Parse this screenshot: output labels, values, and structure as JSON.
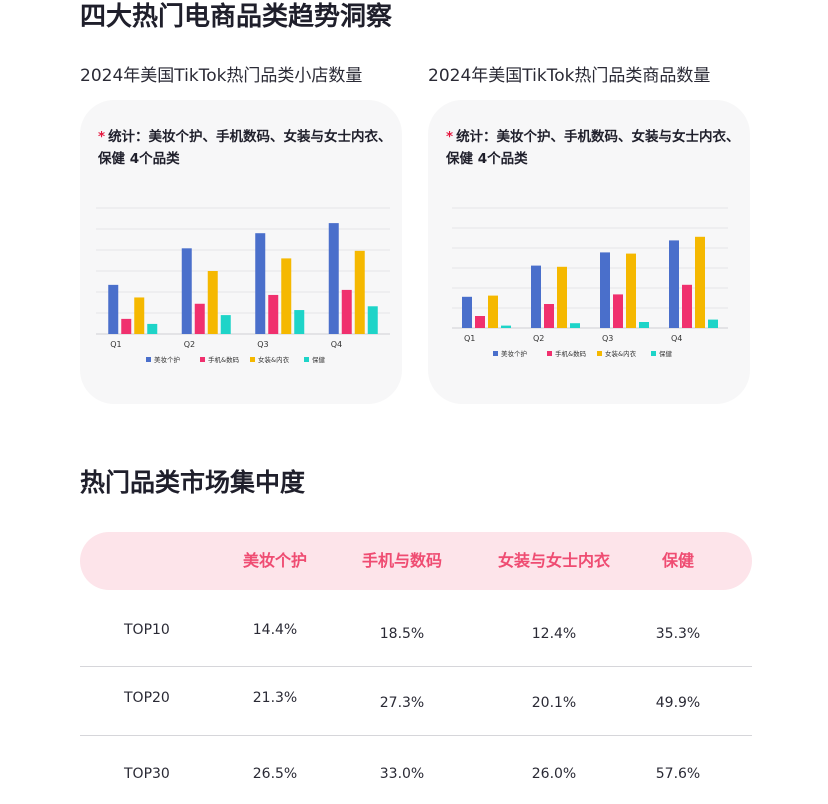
{
  "page": {
    "title": "四大热门电商品类趋势洞察",
    "section_title": "热门品类市场集中度"
  },
  "chart_data": [
    {
      "type": "bar",
      "title": "2024年美国TikTok热门品类小店数量",
      "note": "统计：美妆个护、手机数码、女装与女士内衣、保健 4个品类",
      "note_marker": "*",
      "categories": [
        "Q1",
        "Q2",
        "Q3",
        "Q4"
      ],
      "series": [
        {
          "name": "美妆个护",
          "values": [
            39,
            68,
            80,
            88
          ]
        },
        {
          "name": "手机&数码",
          "values": [
            12,
            24,
            31,
            35
          ]
        },
        {
          "name": "女装&内衣",
          "values": [
            29,
            50,
            60,
            66
          ]
        },
        {
          "name": "保健",
          "values": [
            8,
            15,
            19,
            22
          ]
        }
      ],
      "ylim": [
        0,
        100
      ],
      "grid": true,
      "legend_position": "bottom",
      "colors": [
        "#4a6fcb",
        "#f0306e",
        "#f5b800",
        "#1ed4c8"
      ]
    },
    {
      "type": "bar",
      "title": "2024年美国TikTok热门品类商品数量",
      "note": "统计：美妆个护、手机数码、女装与女士内衣、保健 4个品类",
      "note_marker": "*",
      "categories": [
        "Q1",
        "Q2",
        "Q3",
        "Q4"
      ],
      "series": [
        {
          "name": "美妆个护",
          "values": [
            26,
            52,
            63,
            73
          ]
        },
        {
          "name": "手机&数码",
          "values": [
            10,
            20,
            28,
            36
          ]
        },
        {
          "name": "女装&内衣",
          "values": [
            27,
            51,
            62,
            76
          ]
        },
        {
          "name": "保健",
          "values": [
            2,
            4,
            5,
            7
          ]
        }
      ],
      "ylim": [
        0,
        100
      ],
      "grid": true,
      "legend_position": "bottom",
      "colors": [
        "#4a6fcb",
        "#f0306e",
        "#f5b800",
        "#1ed4c8"
      ]
    }
  ],
  "table": {
    "columns": [
      "美妆个护",
      "手机与数码",
      "女装与女士内衣",
      "保健"
    ],
    "rows": [
      {
        "label": "TOP10",
        "values": [
          "14.4%",
          "18.5%",
          "12.4%",
          "35.3%"
        ]
      },
      {
        "label": "TOP20",
        "values": [
          "21.3%",
          "27.3%",
          "20.1%",
          "49.9%"
        ]
      },
      {
        "label": "TOP30",
        "values": [
          "26.5%",
          "33.0%",
          "26.0%",
          "57.6%"
        ]
      }
    ]
  }
}
